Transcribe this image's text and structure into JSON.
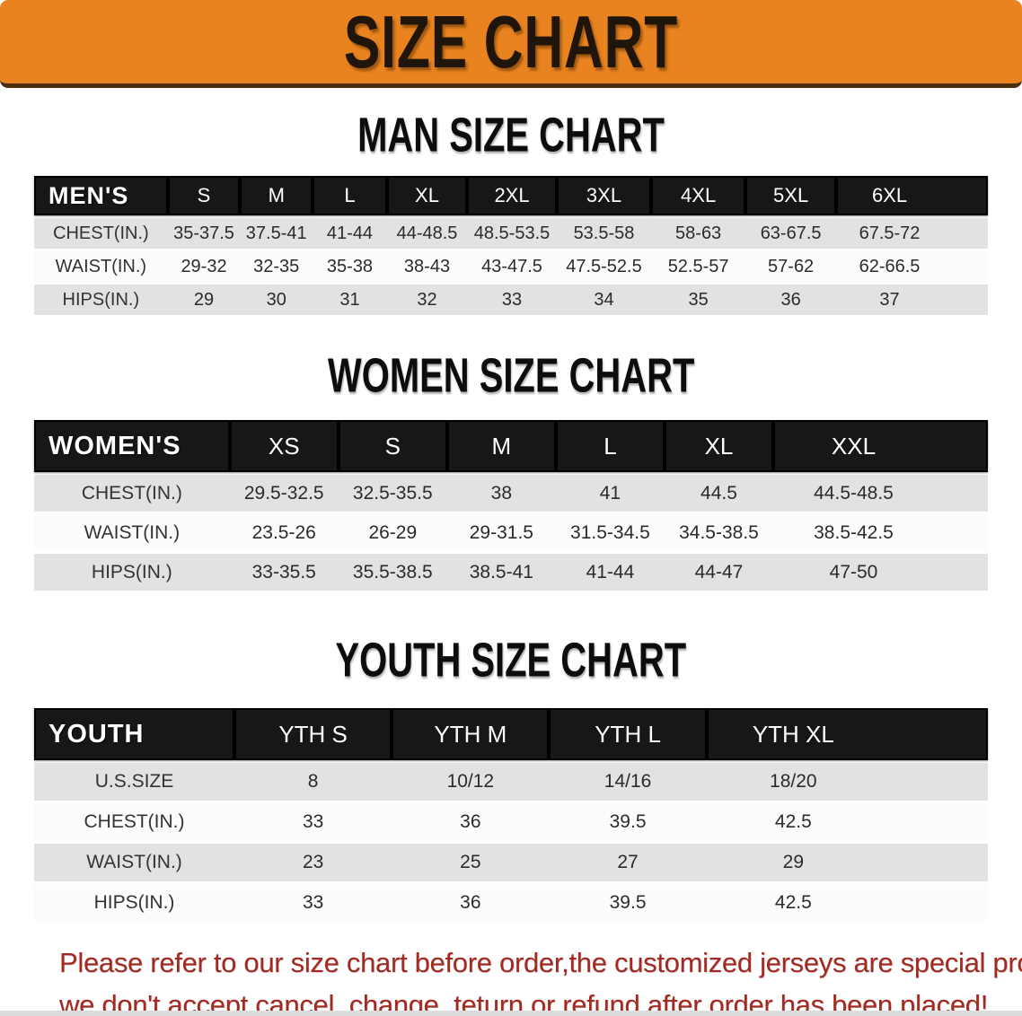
{
  "banner": {
    "title": "SIZE CHART"
  },
  "sections": [
    {
      "id": "mens",
      "title": "MAN SIZE CHART",
      "corner_label": "MEN'S",
      "columns": [
        "S",
        "M",
        "L",
        "XL",
        "2XL",
        "3XL",
        "4XL",
        "5XL",
        "6XL"
      ],
      "rows": [
        {
          "label": "CHEST(IN.)",
          "values": [
            "35-37.5",
            "37.5-41",
            "41-44",
            "44-48.5",
            "48.5-53.5",
            "53.5-58",
            "58-63",
            "63-67.5",
            "67.5-72"
          ]
        },
        {
          "label": "WAIST(IN.)",
          "values": [
            "29-32",
            "32-35",
            "35-38",
            "38-43",
            "43-47.5",
            "47.5-52.5",
            "52.5-57",
            "57-62",
            "62-66.5"
          ]
        },
        {
          "label": "HIPS(IN.)",
          "values": [
            "29",
            "30",
            "31",
            "32",
            "33",
            "34",
            "35",
            "36",
            "37"
          ]
        }
      ]
    },
    {
      "id": "womens",
      "title": "WOMEN SIZE CHART",
      "corner_label": "WOMEN'S",
      "columns": [
        "XS",
        "S",
        "M",
        "L",
        "XL",
        "XXL"
      ],
      "rows": [
        {
          "label": "CHEST(IN.)",
          "values": [
            "29.5-32.5",
            "32.5-35.5",
            "38",
            "41",
            "44.5",
            "44.5-48.5"
          ]
        },
        {
          "label": "WAIST(IN.)",
          "values": [
            "23.5-26",
            "26-29",
            "29-31.5",
            "31.5-34.5",
            "34.5-38.5",
            "38.5-42.5"
          ]
        },
        {
          "label": "HIPS(IN.)",
          "values": [
            "33-35.5",
            "35.5-38.5",
            "38.5-41",
            "41-44",
            "44-47",
            "47-50"
          ]
        }
      ]
    },
    {
      "id": "youth",
      "title": "YOUTH SIZE CHART",
      "corner_label": "YOUTH",
      "columns": [
        "YTH S",
        "YTH M",
        "YTH L",
        "YTH XL"
      ],
      "rows": [
        {
          "label": "U.S.SIZE",
          "values": [
            "8",
            "10/12",
            "14/16",
            "18/20"
          ]
        },
        {
          "label": "CHEST(IN.)",
          "values": [
            "33",
            "36",
            "39.5",
            "42.5"
          ]
        },
        {
          "label": "WAIST(IN.)",
          "values": [
            "23",
            "25",
            "27",
            "29"
          ]
        },
        {
          "label": "HIPS(IN.)",
          "values": [
            "33",
            "36",
            "39.5",
            "42.5"
          ]
        }
      ]
    }
  ],
  "disclaimer": {
    "lines": [
      "Please refer to our size chart before order,the customized jerseys are special products,",
      "we don't accept cancel, change, teturn or refund after order has been placed!"
    ]
  },
  "colors": {
    "banner_orange": "#e8831f",
    "banner_underline_brown": "#4a2e0d",
    "table_header_black": "#171717",
    "row_gray": "#e2e2e2",
    "row_white": "#fcfcfc",
    "disclaimer_red": "#a32a22"
  }
}
